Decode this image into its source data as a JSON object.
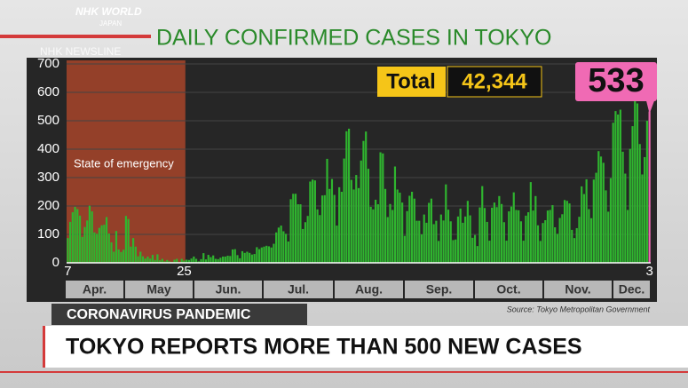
{
  "header": {
    "brand": "NHK WORLD",
    "brand_sub": "JAPAN",
    "program": "NHK NEWSLINE"
  },
  "chart_data": {
    "type": "bar",
    "title": "DAILY CONFIRMED CASES IN TOKYO",
    "annotation": "State of emergency",
    "total": {
      "label": "Total",
      "value": "42,344"
    },
    "source": "Source: Tokyo Metropolitan Government",
    "months": [
      "Apr.",
      "May",
      "Jun.",
      "Jul.",
      "Aug.",
      "Sep.",
      "Oct.",
      "Nov.",
      "Dec."
    ],
    "categories": [
      "7",
      null,
      null,
      null,
      null,
      null,
      null,
      null,
      null,
      null,
      null,
      null,
      null,
      null,
      null,
      null,
      null,
      null,
      null,
      null,
      null,
      null,
      null,
      null,
      null,
      null,
      null,
      null,
      null,
      null,
      null,
      null,
      null,
      null,
      null,
      null,
      null,
      null,
      null,
      null,
      null,
      null,
      null,
      null,
      null,
      null,
      null,
      null,
      "25",
      null,
      null,
      null,
      null,
      null,
      null,
      null,
      null,
      null,
      null,
      null,
      null,
      null,
      null,
      null,
      null,
      null,
      null,
      null,
      null,
      null,
      null,
      null,
      null,
      null,
      null,
      null,
      null,
      null,
      null,
      null,
      null,
      null,
      null,
      null,
      null,
      null,
      null,
      null,
      null,
      null,
      null,
      null,
      null,
      null,
      null,
      null,
      null,
      null,
      null,
      null,
      null,
      null,
      null,
      null,
      null,
      null,
      null,
      null,
      null,
      null,
      null,
      null,
      null,
      null,
      null,
      null,
      null,
      null,
      null,
      null,
      null,
      null,
      null,
      null,
      null,
      null,
      null,
      null,
      null,
      null,
      null,
      null,
      null,
      null,
      null,
      null,
      null,
      null,
      null,
      null,
      null,
      null,
      null,
      null,
      null,
      null,
      null,
      null,
      null,
      null,
      null,
      null,
      null,
      null,
      null,
      null,
      null,
      null,
      null,
      null,
      null,
      null,
      null,
      null,
      null,
      null,
      null,
      null,
      null,
      null,
      null,
      null,
      null,
      null,
      null,
      null,
      null,
      null,
      null,
      null,
      null,
      null,
      null,
      null,
      null,
      null,
      null,
      null,
      null,
      null,
      null,
      null,
      null,
      null,
      null,
      null,
      null,
      null,
      null,
      null,
      null,
      null,
      null,
      null,
      null,
      null,
      null,
      null,
      null,
      null,
      null,
      null,
      null,
      null,
      null,
      null,
      null,
      null,
      null,
      null,
      null,
      null,
      null,
      null,
      null,
      null,
      null,
      null,
      null,
      null,
      null,
      null,
      null,
      null,
      null,
      null,
      null,
      null,
      null,
      null,
      "3"
    ],
    "values": [
      87,
      144,
      178,
      197,
      189,
      166,
      91,
      126,
      149,
      201,
      181,
      107,
      102,
      123,
      132,
      134,
      161,
      103,
      72,
      39,
      112,
      47,
      38,
      46,
      165,
      154,
      57,
      87,
      57,
      23,
      39,
      23,
      15,
      22,
      15,
      28,
      10,
      30,
      9,
      14,
      5,
      10,
      5,
      3,
      11,
      14,
      2,
      14,
      8,
      11,
      10,
      15,
      22,
      14,
      5,
      13,
      34,
      12,
      28,
      20,
      26,
      14,
      13,
      18,
      22,
      22,
      25,
      24,
      47,
      48,
      27,
      16,
      41,
      35,
      39,
      35,
      29,
      31,
      55,
      48,
      54,
      57,
      60,
      58,
      54,
      67,
      107,
      124,
      131,
      111,
      102,
      75,
      224,
      243,
      243,
      206,
      206,
      119,
      143,
      165,
      286,
      293,
      290,
      188,
      168,
      237,
      238,
      366,
      260,
      295,
      239,
      131,
      266,
      250,
      367,
      463,
      472,
      292,
      258,
      309,
      263,
      360,
      429,
      462,
      331,
      197,
      188,
      222,
      206,
      389,
      385,
      260,
      161,
      207,
      186,
      339,
      258,
      247,
      212,
      95,
      182,
      236,
      250,
      226,
      148,
      148,
      100,
      170,
      141,
      211,
      226,
      136,
      148,
      77,
      170,
      149,
      276,
      187,
      146,
      80,
      82,
      163,
      191,
      141,
      163,
      218,
      167,
      88,
      98,
      59,
      195,
      270,
      193,
      144,
      78,
      194,
      212,
      196,
      235,
      207,
      143,
      78,
      181,
      198,
      248,
      186,
      185,
      146,
      78,
      166,
      178,
      284,
      184,
      235,
      132,
      77,
      140,
      150,
      184,
      186,
      203,
      125,
      102,
      158,
      171,
      221,
      218,
      209,
      116,
      87,
      122,
      162,
      269,
      242,
      294,
      189,
      157,
      293,
      317,
      393,
      374,
      352,
      255,
      180,
      298,
      493,
      534,
      522,
      539,
      391,
      314,
      186,
      401,
      481,
      570,
      561,
      418,
      311,
      372,
      500,
      533
    ],
    "color": "#2fb52f",
    "highlight_color": "#f06ab4",
    "ylim": [
      0,
      700
    ],
    "yticks": [
      0,
      100,
      200,
      300,
      400,
      500,
      600,
      700
    ],
    "grid": true
  },
  "banner": {
    "tag": "CORONAVIRUS PANDEMIC",
    "headline": "TOKYO REPORTS MORE THAN 500 NEW CASES"
  }
}
